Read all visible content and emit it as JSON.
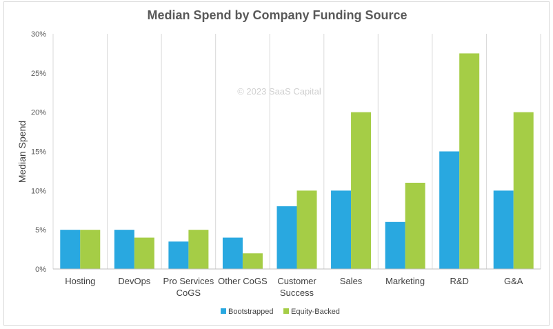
{
  "chart_data": {
    "type": "bar",
    "title": "Median Spend by Company Funding Source",
    "ylabel": "Median Spend",
    "xlabel": "",
    "watermark": "© 2023 SaaS Capital",
    "ylim": [
      0,
      30
    ],
    "yticks": [
      "0%",
      "5%",
      "10%",
      "15%",
      "20%",
      "25%",
      "30%"
    ],
    "ytick_values": [
      0,
      5,
      10,
      15,
      20,
      25,
      30
    ],
    "categories": [
      [
        "Hosting"
      ],
      [
        "DevOps"
      ],
      [
        "Pro Services",
        "CoGS"
      ],
      [
        "Other CoGS"
      ],
      [
        "Customer",
        "Success"
      ],
      [
        "Sales"
      ],
      [
        "Marketing"
      ],
      [
        "R&D"
      ],
      [
        "G&A"
      ]
    ],
    "series": [
      {
        "name": "Bootstrapped",
        "color": "#29a8e0",
        "values": [
          5,
          5,
          3.5,
          4,
          8,
          10,
          6,
          15,
          10
        ]
      },
      {
        "name": "Equity-Backed",
        "color": "#a5cd46",
        "values": [
          5,
          4,
          5,
          2,
          10,
          20,
          11,
          27.5,
          20
        ]
      }
    ],
    "grid": "vertical-category-separators",
    "legend_position": "bottom"
  }
}
